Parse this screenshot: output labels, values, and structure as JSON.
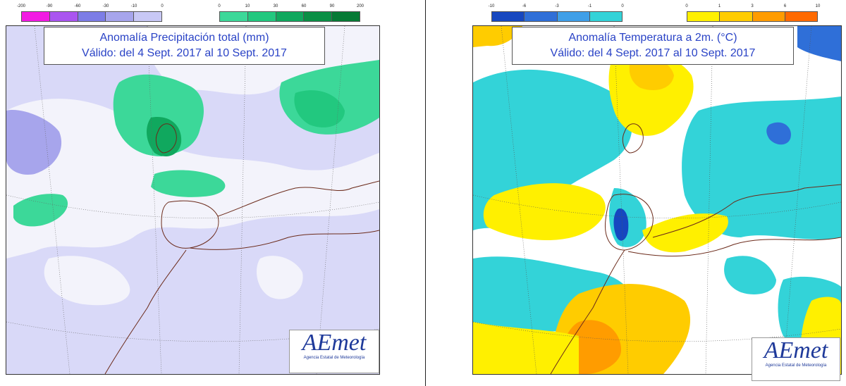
{
  "colors": {
    "precip": [
      "#f21ae3",
      "#aa55f0",
      "#7d7de6",
      "#a7a5ec",
      "#c8c8f5",
      "#d9d9f8",
      "#3cd899",
      "#22c87f",
      "#10a85e",
      "#0a8f45",
      "#067a35"
    ],
    "temp": [
      "#1647c0",
      "#2f6fd8",
      "#3f9fe8",
      "#33d3d8",
      "#fff000",
      "#ffcc00",
      "#ff9c00",
      "#ff6a00",
      "#ff3c00"
    ]
  },
  "left_panel": {
    "legend_neg_ticks": [
      "-200",
      "-90",
      "-60",
      "-30",
      "-10",
      "0"
    ],
    "legend_pos_ticks": [
      "0",
      "10",
      "30",
      "60",
      "90",
      "200"
    ],
    "title_line1": "Anomalía Precipitación total (mm)",
    "title_line2": "Válido: del 4 Sept. 2017 al 10 Sept. 2017",
    "logo_text": "AEmet",
    "logo_subtitle": "Agencia Estatal de Meteorología"
  },
  "right_panel": {
    "legend_neg_ticks": [
      "-10",
      "-6",
      "-3",
      "-1",
      "0"
    ],
    "legend_pos_ticks": [
      "0",
      "1",
      "3",
      "6",
      "10"
    ],
    "title_line1": "Anomalía Temperatura a 2m. (°C)",
    "title_line2": "Válido: del 4 Sept. 2017 al 10 Sept. 2017",
    "logo_text": "AEmet",
    "logo_subtitle": "Agencia Estatal de Meteorología"
  }
}
